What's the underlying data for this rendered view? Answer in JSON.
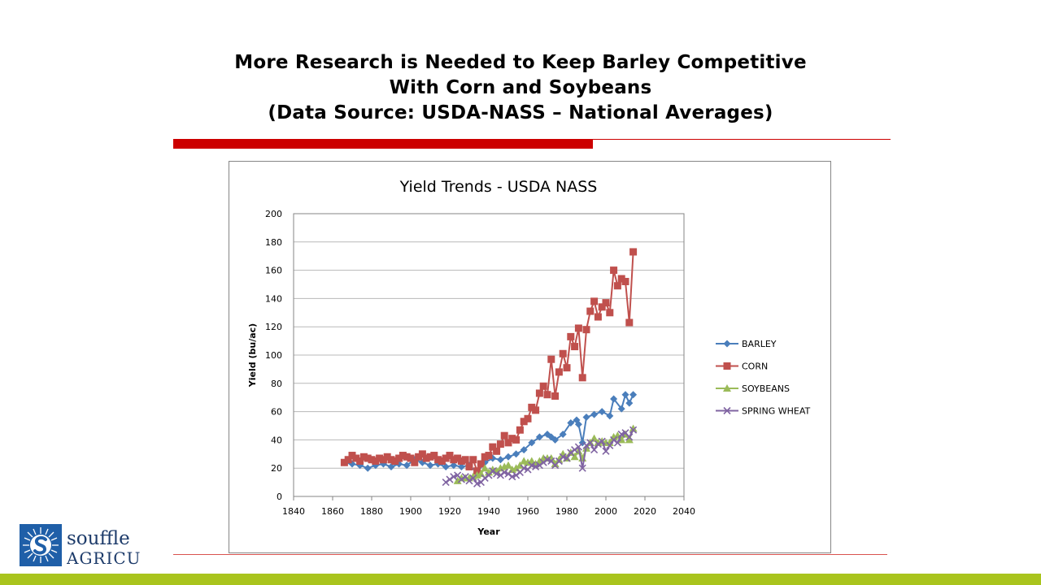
{
  "slide": {
    "title_lines": [
      "More Research is Needed to Keep Barley Competitive",
      "With Corn and Soybeans",
      "(Data Source:  USDA-NASS – National Averages)"
    ],
    "logo": {
      "line1": "souffle",
      "line2": "AGRICU"
    },
    "colors": {
      "accent_red": "#cc0000",
      "band_green": "#a9c41d"
    }
  },
  "chart_data": {
    "type": "scatter",
    "title": "Yield Trends - USDA NASS",
    "xlabel": "Year",
    "ylabel": "Yield (bu/ac)",
    "xlim": [
      1840,
      2040
    ],
    "ylim": [
      0,
      200
    ],
    "xticks": [
      "1840",
      "1860",
      "1880",
      "1900",
      "1920",
      "1940",
      "1960",
      "1980",
      "2000",
      "2020",
      "2040"
    ],
    "yticks": [
      "0",
      "20",
      "40",
      "60",
      "80",
      "100",
      "120",
      "140",
      "160",
      "180",
      "200"
    ],
    "legend_position": "right",
    "series": [
      {
        "name": "BARLEY",
        "color": "#4a7ebb",
        "marker": "diamond",
        "x": [
          1866,
          1870,
          1874,
          1878,
          1882,
          1886,
          1890,
          1894,
          1898,
          1902,
          1906,
          1910,
          1914,
          1918,
          1922,
          1926,
          1930,
          1934,
          1938,
          1942,
          1946,
          1950,
          1954,
          1958,
          1962,
          1966,
          1970,
          1972,
          1974,
          1978,
          1982,
          1985,
          1986,
          1988,
          1990,
          1994,
          1998,
          2002,
          2004,
          2008,
          2010,
          2012,
          2014
        ],
        "y": [
          24,
          23,
          22,
          20,
          22,
          23,
          21,
          23,
          22,
          26,
          24,
          22,
          23,
          21,
          22,
          21,
          22,
          17,
          24,
          27,
          26,
          28,
          30,
          33,
          38,
          42,
          44,
          42,
          40,
          44,
          52,
          54,
          51,
          38,
          56,
          58,
          60,
          57,
          69,
          62,
          72,
          66,
          72
        ]
      },
      {
        "name": "CORN",
        "color": "#c0504d",
        "marker": "square",
        "x": [
          1866,
          1868,
          1870,
          1872,
          1874,
          1876,
          1878,
          1880,
          1882,
          1884,
          1886,
          1888,
          1890,
          1892,
          1894,
          1896,
          1898,
          1900,
          1902,
          1904,
          1906,
          1908,
          1910,
          1912,
          1914,
          1916,
          1918,
          1920,
          1922,
          1924,
          1926,
          1928,
          1930,
          1932,
          1934,
          1936,
          1938,
          1940,
          1942,
          1944,
          1946,
          1948,
          1950,
          1952,
          1954,
          1956,
          1958,
          1960,
          1962,
          1964,
          1966,
          1968,
          1970,
          1972,
          1974,
          1976,
          1978,
          1980,
          1982,
          1984,
          1986,
          1988,
          1990,
          1992,
          1994,
          1996,
          1998,
          2000,
          2002,
          2004,
          2006,
          2008,
          2010,
          2012,
          2014
        ],
        "y": [
          24,
          26,
          29,
          27,
          25,
          28,
          27,
          26,
          25,
          27,
          26,
          28,
          26,
          25,
          27,
          29,
          28,
          27,
          24,
          28,
          30,
          27,
          28,
          29,
          26,
          25,
          27,
          29,
          26,
          27,
          25,
          26,
          21,
          26,
          18,
          23,
          28,
          29,
          35,
          32,
          37,
          43,
          38,
          41,
          40,
          47,
          53,
          55,
          63,
          61,
          73,
          78,
          72,
          97,
          71,
          88,
          101,
          91,
          113,
          106,
          119,
          84,
          118,
          131,
          138,
          127,
          134,
          137,
          130,
          160,
          149,
          154,
          152,
          123,
          173
        ]
      },
      {
        "name": "SOYBEANS",
        "color": "#9bbb59",
        "marker": "triangle",
        "x": [
          1924,
          1926,
          1928,
          1930,
          1932,
          1934,
          1936,
          1938,
          1940,
          1942,
          1944,
          1946,
          1948,
          1950,
          1952,
          1954,
          1956,
          1958,
          1960,
          1962,
          1964,
          1966,
          1968,
          1970,
          1972,
          1974,
          1976,
          1978,
          1980,
          1982,
          1984,
          1986,
          1988,
          1990,
          1992,
          1994,
          1996,
          1998,
          2000,
          2002,
          2004,
          2006,
          2008,
          2010,
          2012,
          2014
        ],
        "y": [
          11,
          13,
          13,
          13,
          14,
          15,
          16,
          20,
          17,
          19,
          18,
          20,
          21,
          22,
          19,
          20,
          22,
          25,
          24,
          25,
          23,
          25,
          27,
          27,
          27,
          23,
          26,
          30,
          27,
          31,
          28,
          32,
          27,
          34,
          38,
          41,
          38,
          39,
          38,
          38,
          42,
          43,
          40,
          44,
          40,
          48
        ]
      },
      {
        "name": "SPRING WHEAT",
        "color": "#8064a2",
        "marker": "x",
        "x": [
          1918,
          1920,
          1922,
          1924,
          1926,
          1928,
          1930,
          1932,
          1934,
          1936,
          1938,
          1940,
          1942,
          1944,
          1946,
          1948,
          1950,
          1952,
          1954,
          1956,
          1958,
          1960,
          1962,
          1964,
          1966,
          1968,
          1970,
          1972,
          1974,
          1976,
          1978,
          1980,
          1982,
          1984,
          1986,
          1988,
          1990,
          1992,
          1994,
          1996,
          1998,
          2000,
          2002,
          2004,
          2006,
          2008,
          2010,
          2012,
          2014
        ],
        "y": [
          10,
          12,
          14,
          15,
          12,
          14,
          11,
          13,
          9,
          10,
          13,
          15,
          18,
          16,
          15,
          17,
          16,
          14,
          15,
          17,
          20,
          19,
          22,
          21,
          22,
          24,
          26,
          25,
          22,
          25,
          28,
          27,
          31,
          33,
          35,
          20,
          36,
          38,
          33,
          37,
          39,
          32,
          36,
          40,
          38,
          44,
          45,
          42,
          47
        ]
      }
    ]
  }
}
